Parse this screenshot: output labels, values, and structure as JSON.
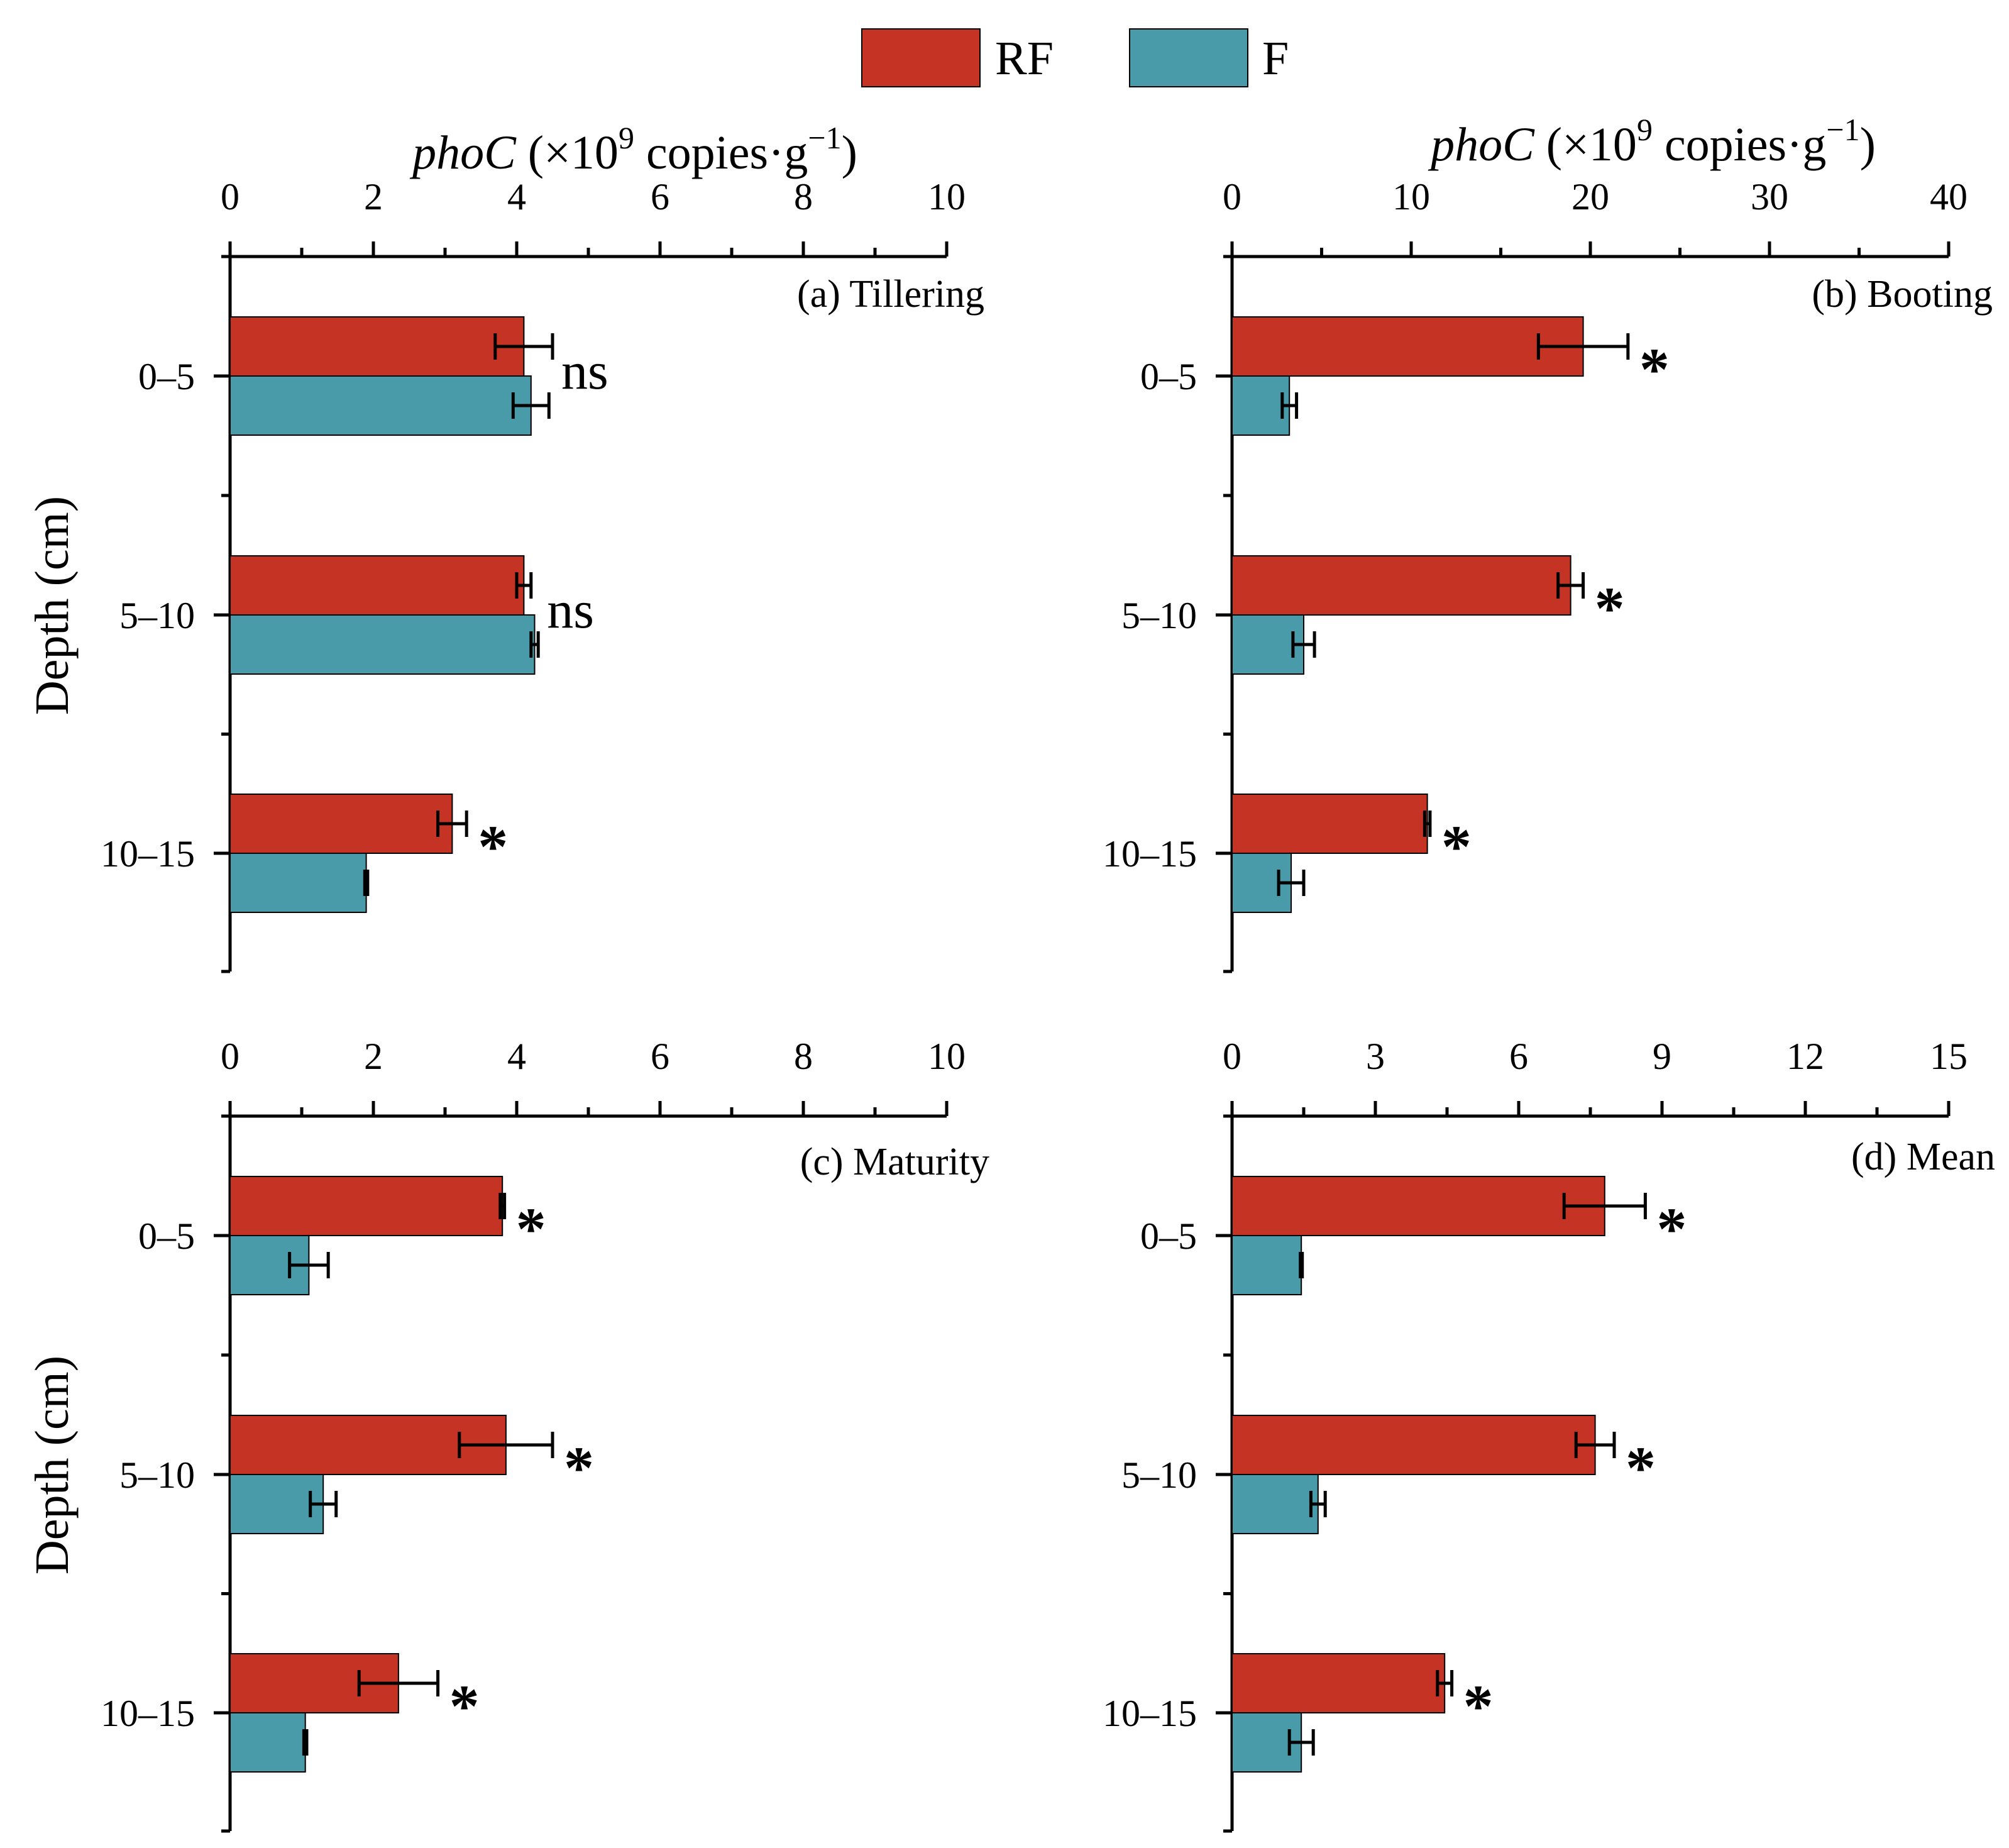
{
  "legend": {
    "items": [
      {
        "label": "RF",
        "color": "#c43324"
      },
      {
        "label": "F",
        "color": "#4a9ba9"
      }
    ]
  },
  "axis_title": {
    "gene": "phoC",
    "prefix": " (×10",
    "exp": "9",
    "middle": " copies·g",
    "neg_exp": "−1",
    "suffix": ")"
  },
  "ylabel": "Depth (cm)",
  "colors": {
    "rf": "#c43324",
    "f": "#4a9ba9",
    "axis": "#000000"
  },
  "chart_data": [
    {
      "type": "bar",
      "orientation": "horizontal",
      "title": "(a) Tillering",
      "categories": [
        "0–5",
        "5–10",
        "10–15"
      ],
      "xlim": [
        0,
        10
      ],
      "xticks": [
        "0",
        "2",
        "4",
        "6",
        "8",
        "10"
      ],
      "series": [
        {
          "name": "RF",
          "values": [
            4.1,
            4.1,
            3.1
          ],
          "errors": [
            0.4,
            0.1,
            0.2
          ]
        },
        {
          "name": "F",
          "values": [
            4.2,
            4.25,
            1.9
          ],
          "errors": [
            0.25,
            0.05,
            0.02
          ]
        }
      ],
      "significance": [
        "ns",
        "ns",
        "*"
      ]
    },
    {
      "type": "bar",
      "orientation": "horizontal",
      "title": "(b) Booting",
      "categories": [
        "0–5",
        "5–10",
        "10–15"
      ],
      "xlim": [
        0,
        40
      ],
      "xticks": [
        "0",
        "10",
        "20",
        "30",
        "40"
      ],
      "series": [
        {
          "name": "RF",
          "values": [
            19.6,
            18.9,
            10.9
          ],
          "errors": [
            2.5,
            0.7,
            0.15
          ]
        },
        {
          "name": "F",
          "values": [
            3.2,
            4.0,
            3.3
          ],
          "errors": [
            0.4,
            0.6,
            0.7
          ]
        }
      ],
      "significance": [
        "*",
        "*",
        "*"
      ]
    },
    {
      "type": "bar",
      "orientation": "horizontal",
      "title": "(c) Maturity",
      "categories": [
        "0–5",
        "5–10",
        "10–15"
      ],
      "xlim": [
        0,
        10
      ],
      "xticks": [
        "0",
        "2",
        "4",
        "6",
        "8",
        "10"
      ],
      "series": [
        {
          "name": "RF",
          "values": [
            3.8,
            3.85,
            2.35
          ],
          "errors": [
            0.03,
            0.65,
            0.55
          ]
        },
        {
          "name": "F",
          "values": [
            1.1,
            1.3,
            1.05
          ],
          "errors": [
            0.27,
            0.18,
            0.02
          ]
        }
      ],
      "significance": [
        "*",
        "*",
        "*"
      ]
    },
    {
      "type": "bar",
      "orientation": "horizontal",
      "title": "(d) Mean",
      "categories": [
        "0–5",
        "5–10",
        "10–15"
      ],
      "xlim": [
        0,
        15
      ],
      "xticks": [
        "0",
        "3",
        "6",
        "9",
        "12",
        "15"
      ],
      "series": [
        {
          "name": "RF",
          "values": [
            7.8,
            7.6,
            4.45
          ],
          "errors": [
            0.85,
            0.4,
            0.15
          ]
        },
        {
          "name": "F",
          "values": [
            1.45,
            1.8,
            1.45
          ],
          "errors": [
            0.02,
            0.15,
            0.25
          ]
        }
      ],
      "significance": [
        "*",
        "*",
        "*"
      ]
    }
  ]
}
